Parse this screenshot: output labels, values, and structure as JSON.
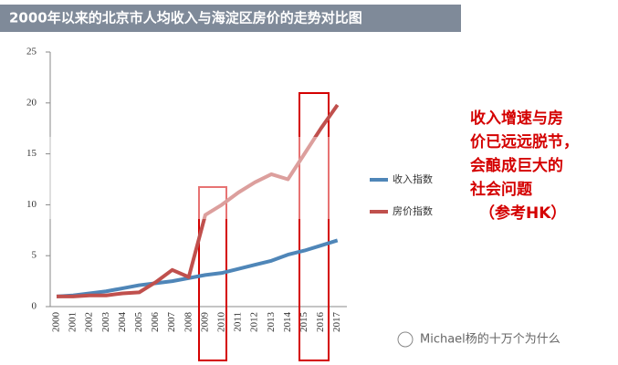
{
  "chart_data": {
    "type": "line",
    "title": "2000年以来的北京市人均收入与海淀区房价的走势对比图",
    "categories": [
      "2000",
      "2001",
      "2002",
      "2003",
      "2004",
      "2005",
      "2006",
      "2007",
      "2008",
      "2009",
      "2010",
      "2011",
      "2012",
      "2013",
      "2014",
      "2015",
      "2016",
      "2017"
    ],
    "series": [
      {
        "name": "收入指数",
        "color": "#4f86b8",
        "values": [
          1,
          1.1,
          1.3,
          1.5,
          1.8,
          2.1,
          2.3,
          2.5,
          2.8,
          3.1,
          3.3,
          3.7,
          4.1,
          4.5,
          5.1,
          5.5,
          6.0,
          6.5
        ]
      },
      {
        "name": "房价指数",
        "color": "#c0504d",
        "values": [
          1,
          1.0,
          1.1,
          1.1,
          1.3,
          1.4,
          2.4,
          3.6,
          2.9,
          9.0,
          10.0,
          11.2,
          12.2,
          13.0,
          12.5,
          15.0,
          17.5,
          19.8
        ]
      }
    ],
    "ylim": [
      0,
      25
    ],
    "yticks": [
      0,
      5,
      10,
      15,
      20,
      25
    ],
    "annotation": [
      "收入增速与房",
      "价已远远脱节，",
      "会酿成巨大的",
      "社会问题",
      "（参考HK）"
    ],
    "watermark": "Michael杨的十万个为什么"
  }
}
